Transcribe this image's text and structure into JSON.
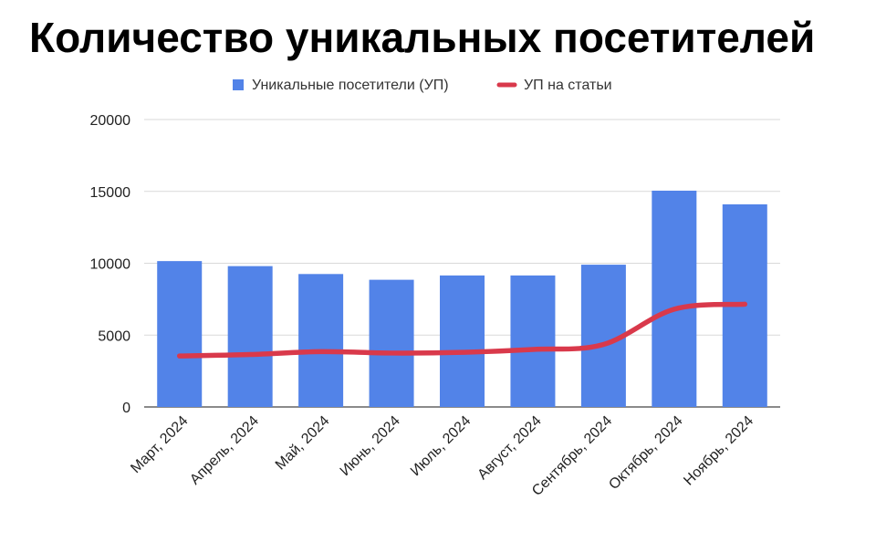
{
  "title": "Количество уникальных посетителей",
  "chart_data": {
    "type": "bar",
    "categories": [
      "Март, 2024",
      "Апрель, 2024",
      "Май, 2024",
      "Июнь, 2024",
      "Июль, 2024",
      "Август, 2024",
      "Сентябрь, 2024",
      "Октябрь, 2024",
      "Ноябрь, 2024"
    ],
    "series": [
      {
        "name": "Уникальные посетители (УП)",
        "type": "bar",
        "color": "#5283e8",
        "values": [
          10150,
          9800,
          9250,
          8850,
          9150,
          9150,
          9900,
          15050,
          14100
        ]
      },
      {
        "name": "УП на статьи",
        "type": "line",
        "color": "#d9394b",
        "values": [
          3550,
          3650,
          3850,
          3750,
          3800,
          4000,
          4350,
          6800,
          7150
        ]
      }
    ],
    "ylim": [
      0,
      20000
    ],
    "yticks": [
      0,
      5000,
      10000,
      15000,
      20000
    ],
    "grid": true,
    "legend": "top"
  }
}
